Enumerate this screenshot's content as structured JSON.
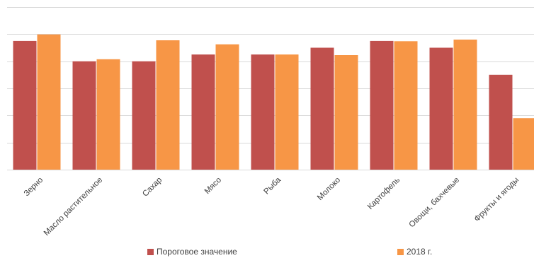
{
  "chart_data": {
    "type": "bar",
    "categories": [
      "Зерно",
      "Масло растительное",
      "Сахар",
      "Мясо",
      "Рыба",
      "Молоко",
      "Картофель",
      "Овощи, бахчевые",
      "Фрукты и ягоды"
    ],
    "series": [
      {
        "name": "Пороговое значение",
        "color": "#c0504d",
        "values": [
          95,
          80,
          80,
          85,
          85,
          90,
          95,
          90,
          70
        ]
      },
      {
        "name": "2018 г.",
        "color": "#f79646",
        "values": [
          99.8,
          81.5,
          95.5,
          92.5,
          85,
          84.5,
          94.8,
          96,
          38
        ]
      }
    ],
    "ylim": [
      0,
      120
    ],
    "y_gridlines": [
      0,
      20,
      40,
      60,
      80,
      100,
      120
    ],
    "grid": true,
    "y_tick_labels_visible": false,
    "legend_position": "bottom"
  }
}
